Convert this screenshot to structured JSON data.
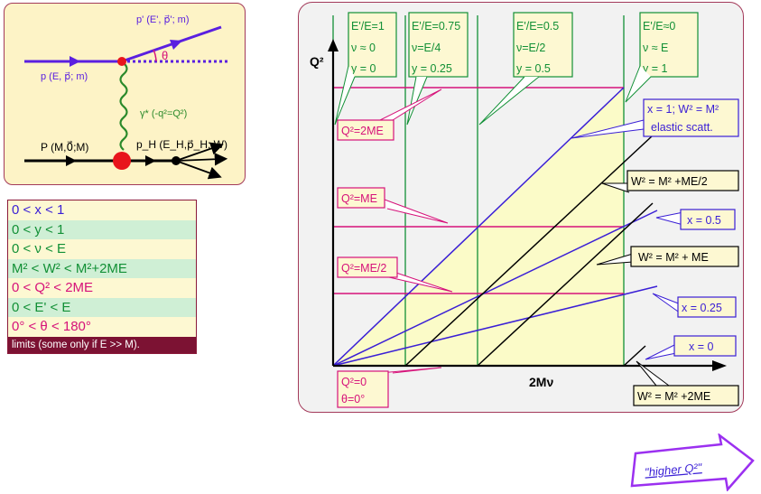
{
  "feynman": {
    "outgoing_electron": "p' (E', p⃗'; m)",
    "incoming_electron": "p (E, p⃗; m)",
    "angle": "θ",
    "photon": "γ* (-q²=Q²)",
    "target": "P (M,0⃗;M)",
    "hadrons": "p_H (E_H,p⃗_H; W)"
  },
  "limits": {
    "rows": [
      {
        "text": "0   <   x   < 1",
        "color": "blue",
        "bg": "yellow"
      },
      {
        "text": "0   <   y   < 1",
        "color": "green",
        "bg": "green"
      },
      {
        "text": "0   <   ν   < E",
        "color": "green",
        "bg": "yellow"
      },
      {
        "text": "M² <  W² < M²+2ME",
        "color": "green",
        "bg": "green"
      },
      {
        "text": "0   <  Q² < 2ME",
        "color": "magenta",
        "bg": "yellow"
      },
      {
        "text": "0   <  E'  < E",
        "color": "green",
        "bg": "green"
      },
      {
        "text": "0°  <   θ   < 180°",
        "color": "magenta",
        "bg": "yellow"
      }
    ],
    "caption": "limits (some only if E >> M)."
  },
  "plot": {
    "ylabel": "Q²",
    "xlabel": "2Mν",
    "top_boxes": [
      {
        "l1": "E'/E=1",
        "l2": "ν ≈ 0",
        "l3": "y = 0"
      },
      {
        "l1": "E'/E=0.75",
        "l2": "ν=E/4",
        "l3": "y = 0.25"
      },
      {
        "l1": "E'/E=0.5",
        "l2": "ν=E/2",
        "l3": "y = 0.5"
      },
      {
        "l1": "E'/E≈0",
        "l2": "ν ≈ E",
        "l3": "y = 1"
      }
    ],
    "q2_labels": {
      "twoME": "Q²=2ME",
      "ME": "Q²=ME",
      "halfME": "Q²=ME/2",
      "zero_l1": "Q²=0",
      "zero_l2": "θ=0°"
    },
    "x_labels": {
      "x1_l1": "x = 1; W² = M²",
      "x1_l2": "elastic scatt.",
      "x05": "x = 0.5",
      "x025": "x = 0.25",
      "x0": "x = 0"
    },
    "w_labels": {
      "half": "W² = M² +ME/2",
      "one": "W² = M² + ME",
      "two": "W² = M² +2ME"
    }
  },
  "arrow_note": "\"higher Q²\"",
  "colors": {
    "blue": "#3a1fd6",
    "green": "#129036",
    "magenta": "#d6127a",
    "yellow_region": "#fbfbc8",
    "dark_red": "#7c1233"
  }
}
